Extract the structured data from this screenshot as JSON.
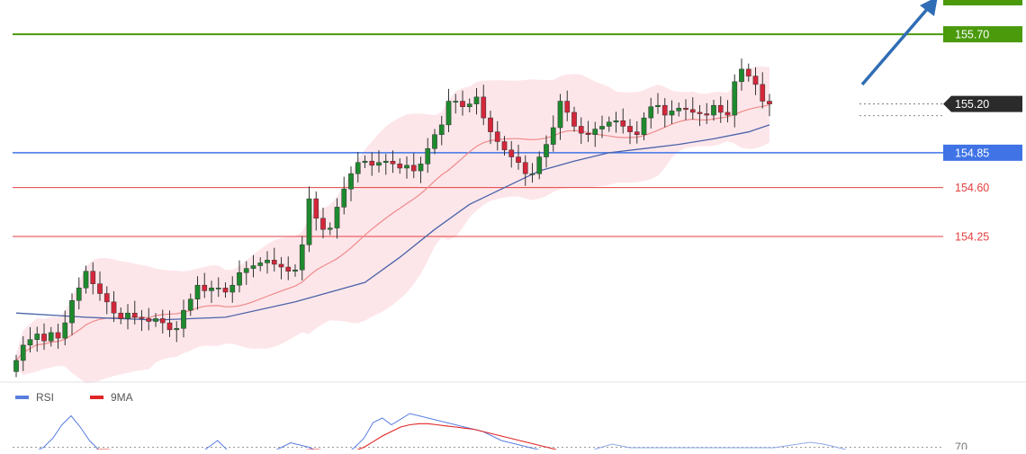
{
  "chart_data": {
    "type": "candlestick",
    "ylim": [
      153.25,
      155.92
    ],
    "levels": [
      {
        "name": "level-155-70",
        "value": 155.7,
        "label": "155.70",
        "color": "#4a9a0c",
        "style": "solid-thick",
        "tag": "filled"
      },
      {
        "name": "level-155-20",
        "value": 155.2,
        "label": "155.20",
        "color": "#333333",
        "style": "dotted",
        "tag": "filled-arrow"
      },
      {
        "name": "level-154-85",
        "value": 154.85,
        "label": "154.85",
        "color": "#3f73e6",
        "style": "solid",
        "tag": "filled"
      },
      {
        "name": "level-154-60",
        "value": 154.6,
        "label": "154.60",
        "color": "#e63f3f",
        "style": "thin",
        "tag": "text"
      },
      {
        "name": "level-154-25",
        "value": 154.25,
        "label": "154.25",
        "color": "#e63f3f",
        "style": "thin",
        "tag": "text"
      }
    ],
    "last_price": 155.2,
    "closes": [
      153.36,
      153.47,
      153.51,
      153.55,
      153.5,
      153.56,
      153.52,
      153.63,
      153.79,
      153.88,
      154.0,
      153.91,
      153.84,
      153.78,
      153.7,
      153.66,
      153.7,
      153.67,
      153.66,
      153.64,
      153.66,
      153.63,
      153.58,
      153.59,
      153.72,
      153.8,
      153.9,
      153.86,
      153.88,
      153.88,
      153.85,
      153.9,
      153.99,
      154.02,
      154.04,
      154.06,
      154.08,
      154.05,
      154.03,
      154.0,
      154.01,
      154.19,
      154.52,
      154.38,
      154.3,
      154.31,
      154.46,
      154.59,
      154.7,
      154.78,
      154.79,
      154.76,
      154.78,
      154.79,
      154.77,
      154.74,
      154.76,
      154.72,
      154.77,
      154.88,
      154.98,
      155.05,
      155.22,
      155.22,
      155.18,
      155.2,
      155.25,
      155.1,
      155.0,
      154.93,
      154.87,
      154.82,
      154.78,
      154.7,
      154.7,
      154.82,
      154.91,
      155.03,
      155.22,
      155.14,
      155.04,
      154.99,
      154.98,
      155.02,
      155.04,
      155.07,
      155.08,
      155.04,
      155.0,
      154.98,
      155.1,
      155.18,
      155.19,
      155.12,
      155.15,
      155.17,
      155.16,
      155.14,
      155.13,
      155.12,
      155.19,
      155.14,
      155.12,
      155.36,
      155.45,
      155.4,
      155.34,
      155.22,
      155.2
    ],
    "ma_long": {
      "name": "",
      "color": "#4a63a8",
      "start": [
        153.7,
        153.69
      ],
      "start_index": 0,
      "end_index": 108,
      "points": [
        [
          0,
          153.7
        ],
        [
          10,
          153.67
        ],
        [
          20,
          153.65
        ],
        [
          30,
          153.67
        ],
        [
          40,
          153.78
        ],
        [
          50,
          153.92
        ],
        [
          55,
          154.1
        ],
        [
          60,
          154.3
        ],
        [
          65,
          154.48
        ],
        [
          70,
          154.6
        ],
        [
          75,
          154.72
        ],
        [
          80,
          154.79
        ],
        [
          85,
          154.85
        ],
        [
          90,
          154.88
        ],
        [
          95,
          154.91
        ],
        [
          100,
          154.95
        ],
        [
          105,
          155.0
        ],
        [
          108,
          155.05
        ]
      ]
    },
    "rsi": {
      "legend": [
        {
          "name": "RSI",
          "color": "#5a7ee0"
        },
        {
          "name": "9MA",
          "color": "#e02424"
        }
      ],
      "ylim": [
        0,
        100
      ],
      "levels": [
        {
          "value": 70,
          "label": "70"
        }
      ],
      "rsi_values": [
        60,
        62,
        66,
        70,
        78,
        90,
        98,
        88,
        76,
        68,
        64,
        60,
        58,
        57,
        58,
        60,
        62,
        60,
        59,
        62,
        64,
        70,
        76,
        68,
        62,
        60,
        58,
        62,
        66,
        70,
        74,
        72,
        70,
        66,
        62,
        60,
        64,
        70,
        78,
        92,
        96,
        90,
        95,
        100,
        98,
        96,
        94,
        92,
        90,
        88,
        86,
        84,
        80,
        76,
        74,
        72,
        70,
        68,
        66,
        65
      ],
      "ma_values": [
        60,
        60,
        61,
        62,
        63,
        64,
        65,
        66,
        67,
        68,
        68,
        67,
        66,
        65,
        64,
        63,
        62,
        62,
        62,
        62,
        63,
        64,
        65,
        66,
        66,
        65,
        64,
        64,
        64,
        65,
        66,
        67,
        68,
        68,
        67,
        66,
        66,
        67,
        70,
        75,
        80,
        84,
        88,
        90,
        91,
        91,
        90,
        89,
        88,
        87,
        86,
        84,
        82,
        80,
        78,
        76,
        74,
        72,
        70,
        68
      ]
    }
  }
}
